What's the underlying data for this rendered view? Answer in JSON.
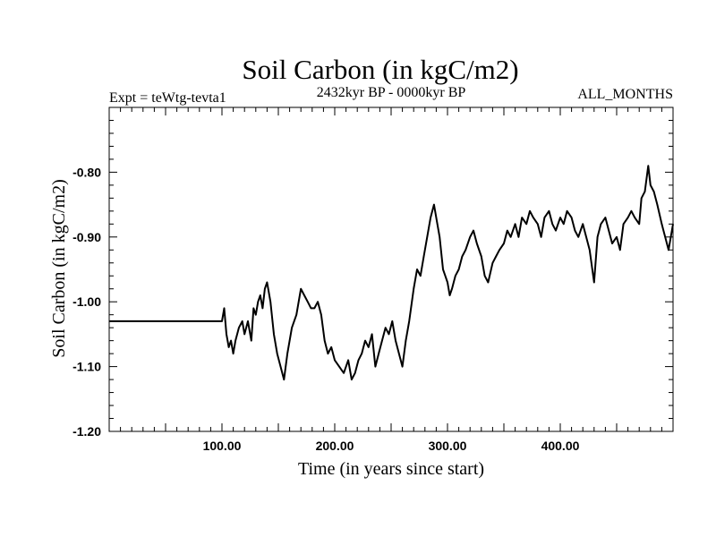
{
  "chart_data": {
    "type": "line",
    "title": "Soil Carbon (in kgC/m2)",
    "subtitle_left": "Expt = teWtg-tevta1",
    "subtitle_center": "2432kyr BP - 0000kyr BP",
    "subtitle_right": "ALL_MONTHS",
    "xlabel": "Time (in years since start)",
    "ylabel": "Soil Carbon (in kgC/m2)",
    "xlim": [
      0,
      500
    ],
    "ylim": [
      -1.2,
      -0.7
    ],
    "x_tick_labels": [
      "100.00",
      "200.00",
      "300.00",
      "400.00"
    ],
    "x_tick_values": [
      100,
      200,
      300,
      400
    ],
    "y_tick_labels": [
      "-0.80",
      "-0.90",
      "-1.00",
      "-1.10",
      "-1.20"
    ],
    "y_tick_values": [
      -0.8,
      -0.9,
      -1.0,
      -1.1,
      -1.2
    ],
    "series": [
      {
        "name": "Soil Carbon",
        "x": [
          0,
          100,
          102,
          104,
          106,
          108,
          110,
          112,
          115,
          118,
          120,
          123,
          126,
          128,
          130,
          132,
          134,
          136,
          138,
          140,
          143,
          146,
          149,
          152,
          155,
          158,
          162,
          166,
          170,
          173,
          176,
          179,
          182,
          185,
          188,
          191,
          194,
          197,
          200,
          204,
          208,
          212,
          215,
          218,
          221,
          224,
          227,
          230,
          233,
          236,
          239,
          242,
          245,
          248,
          251,
          254,
          257,
          260,
          263,
          266,
          270,
          273,
          276,
          279,
          282,
          285,
          288,
          290,
          293,
          296,
          298,
          300,
          302,
          304,
          307,
          310,
          313,
          316,
          320,
          323,
          326,
          330,
          333,
          336,
          340,
          343,
          346,
          350,
          353,
          356,
          360,
          363,
          366,
          370,
          373,
          376,
          380,
          383,
          386,
          390,
          393,
          396,
          400,
          403,
          406,
          410,
          413,
          416,
          420,
          423,
          426,
          430,
          433,
          436,
          440,
          443,
          446,
          450,
          453,
          456,
          460,
          463,
          466,
          470,
          472,
          475,
          478,
          480,
          483,
          486,
          490,
          493,
          496,
          500
        ],
        "values": [
          -1.03,
          -1.03,
          -1.01,
          -1.05,
          -1.07,
          -1.06,
          -1.08,
          -1.06,
          -1.04,
          -1.03,
          -1.05,
          -1.03,
          -1.06,
          -1.01,
          -1.02,
          -1.0,
          -0.99,
          -1.01,
          -0.98,
          -0.97,
          -1.0,
          -1.05,
          -1.08,
          -1.1,
          -1.12,
          -1.08,
          -1.04,
          -1.02,
          -0.98,
          -0.99,
          -1.0,
          -1.01,
          -1.01,
          -1.0,
          -1.02,
          -1.06,
          -1.08,
          -1.07,
          -1.09,
          -1.1,
          -1.11,
          -1.09,
          -1.12,
          -1.11,
          -1.09,
          -1.08,
          -1.06,
          -1.07,
          -1.05,
          -1.1,
          -1.08,
          -1.06,
          -1.04,
          -1.05,
          -1.03,
          -1.06,
          -1.08,
          -1.1,
          -1.06,
          -1.03,
          -0.98,
          -0.95,
          -0.96,
          -0.93,
          -0.9,
          -0.87,
          -0.85,
          -0.87,
          -0.9,
          -0.95,
          -0.96,
          -0.97,
          -0.99,
          -0.98,
          -0.96,
          -0.95,
          -0.93,
          -0.92,
          -0.9,
          -0.89,
          -0.91,
          -0.93,
          -0.96,
          -0.97,
          -0.94,
          -0.93,
          -0.92,
          -0.91,
          -0.89,
          -0.9,
          -0.88,
          -0.9,
          -0.87,
          -0.88,
          -0.86,
          -0.87,
          -0.88,
          -0.9,
          -0.87,
          -0.86,
          -0.88,
          -0.89,
          -0.87,
          -0.88,
          -0.86,
          -0.87,
          -0.89,
          -0.9,
          -0.88,
          -0.9,
          -0.92,
          -0.97,
          -0.9,
          -0.88,
          -0.87,
          -0.89,
          -0.91,
          -0.9,
          -0.92,
          -0.88,
          -0.87,
          -0.86,
          -0.87,
          -0.88,
          -0.84,
          -0.83,
          -0.79,
          -0.82,
          -0.83,
          -0.85,
          -0.88,
          -0.9,
          -0.92,
          -0.88
        ]
      }
    ]
  }
}
